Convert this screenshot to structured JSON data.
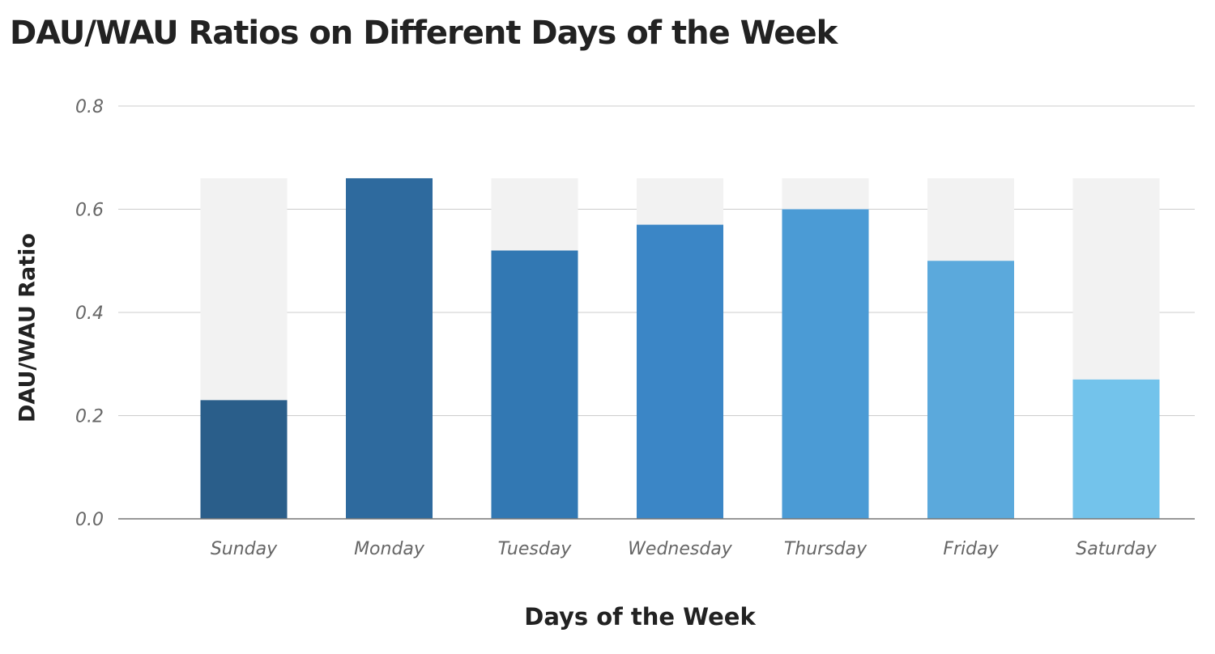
{
  "chart_data": {
    "type": "bar",
    "title": "DAU/WAU Ratios on Different Days of the Week",
    "xlabel": "Days of the Week",
    "ylabel": "DAU/WAU Ratio",
    "ylim": [
      0,
      0.8
    ],
    "yticks": [
      "0.0",
      "0.2",
      "0.4",
      "0.6",
      "0.8"
    ],
    "grid": true,
    "categories": [
      "Sunday",
      "Monday",
      "Tuesday",
      "Wednesday",
      "Thursday",
      "Friday",
      "Saturday"
    ],
    "values": [
      0.23,
      0.66,
      0.52,
      0.57,
      0.6,
      0.5,
      0.27
    ],
    "background_bar_value": 0.66,
    "colors": [
      "#2a5e8a",
      "#2e6a9e",
      "#3278b3",
      "#3b86c6",
      "#4b9bd5",
      "#5ba9dc",
      "#73c3eb"
    ],
    "background_bar_color": "#f2f2f2"
  }
}
